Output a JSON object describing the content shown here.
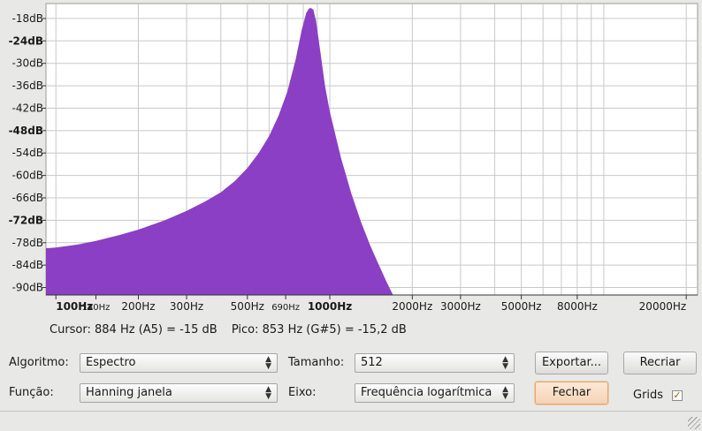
{
  "colors": {
    "spectrum_fill": "#8a3fc4",
    "grid": "#c8c8c8",
    "plot_bg": "#ffffff",
    "accent_button": "#f4d3b5"
  },
  "chart_data": {
    "type": "area",
    "xscale": "log",
    "xlim": [
      92,
      22000
    ],
    "ylim": [
      -92,
      -14
    ],
    "y_ticks": [
      {
        "value": -18,
        "label": "-18dB",
        "bold": false
      },
      {
        "value": -24,
        "label": "-24dB",
        "bold": true
      },
      {
        "value": -30,
        "label": "-30dB",
        "bold": false
      },
      {
        "value": -36,
        "label": "-36dB",
        "bold": false
      },
      {
        "value": -42,
        "label": "-42dB",
        "bold": false
      },
      {
        "value": -48,
        "label": "-48dB",
        "bold": true
      },
      {
        "value": -54,
        "label": "-54dB",
        "bold": false
      },
      {
        "value": -60,
        "label": "-60dB",
        "bold": false
      },
      {
        "value": -66,
        "label": "-66dB",
        "bold": false
      },
      {
        "value": -72,
        "label": "-72dB",
        "bold": true
      },
      {
        "value": -78,
        "label": "-78dB",
        "bold": false
      },
      {
        "value": -84,
        "label": "-84dB",
        "bold": false
      },
      {
        "value": -90,
        "label": "-90dB",
        "bold": false
      }
    ],
    "x_ticks": [
      {
        "value": 100,
        "label": "100Hz",
        "bold": true,
        "size": "normal"
      },
      {
        "value": 140,
        "label": "140Hz",
        "bold": false,
        "size": "small"
      },
      {
        "value": 200,
        "label": "200Hz",
        "bold": false,
        "size": "normal"
      },
      {
        "value": 300,
        "label": "300Hz",
        "bold": false,
        "size": "normal"
      },
      {
        "value": 500,
        "label": "500Hz",
        "bold": false,
        "size": "normal"
      },
      {
        "value": 690,
        "label": "690Hz",
        "bold": false,
        "size": "small"
      },
      {
        "value": 1000,
        "label": "1000Hz",
        "bold": true,
        "size": "normal"
      },
      {
        "value": 2000,
        "label": "2000Hz",
        "bold": false,
        "size": "normal"
      },
      {
        "value": 3000,
        "label": "3000Hz",
        "bold": false,
        "size": "normal"
      },
      {
        "value": 5000,
        "label": "5000Hz",
        "bold": false,
        "size": "normal"
      },
      {
        "value": 8000,
        "label": "8000Hz",
        "bold": false,
        "size": "normal"
      },
      {
        "value": 20000,
        "label": "20000Hz",
        "bold": false,
        "size": "normal"
      }
    ],
    "grid": true,
    "series": [
      {
        "x": [
          92,
          100,
          120,
          140,
          170,
          200,
          250,
          300,
          350,
          400,
          450,
          500,
          550,
          600,
          650,
          700,
          750,
          790,
          820,
          840,
          853,
          870,
          890,
          920,
          960,
          1000,
          1100,
          1200,
          1300,
          1400,
          1500,
          1600,
          1700
        ],
        "y": [
          -79.5,
          -79.3,
          -78.5,
          -77.5,
          -76.0,
          -74.5,
          -72.0,
          -69.5,
          -67.0,
          -64.5,
          -61.5,
          -58.0,
          -54.0,
          -49.5,
          -44.0,
          -37.5,
          -29.0,
          -21.0,
          -16.5,
          -15.3,
          -15.2,
          -15.6,
          -18.5,
          -26.0,
          -36.0,
          -43.0,
          -55.5,
          -65.0,
          -72.5,
          -78.5,
          -83.5,
          -88.0,
          -92.0
        ]
      }
    ]
  },
  "readout": {
    "cursor": "Cursor: 884 Hz (A5) = -15 dB",
    "peak": "Pico: 853 Hz (G#5) = -15,2 dB"
  },
  "controls": {
    "algorithm_label": "Algoritmo:",
    "algorithm_value": "Espectro",
    "function_label": "Função:",
    "function_value": "Hanning janela",
    "size_label": "Tamanho:",
    "size_value": "512",
    "axis_label": "Eixo:",
    "axis_value": "Frequência logarítmica",
    "export_button": "Exportar...",
    "replot_button": "Recriar",
    "close_button": "Fechar",
    "grids_label": "Grids",
    "grids_checked": true
  }
}
